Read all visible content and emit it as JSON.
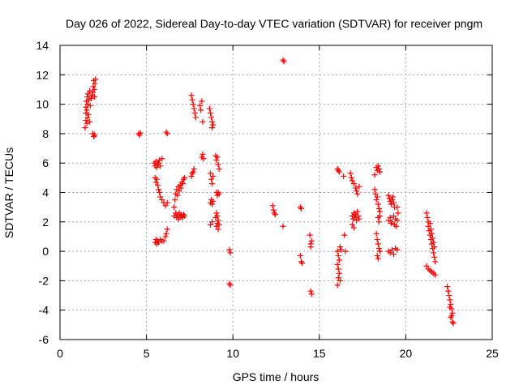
{
  "chart_data": {
    "type": "scatter",
    "title": "Day 026 of 2022, Sidereal Day-to-day VTEC variation (SDTVAR) for receiver pngm",
    "xlabel": "GPS time / hours",
    "ylabel": "SDTVAR / TECUs",
    "xlim": [
      0,
      25
    ],
    "ylim": [
      -6,
      14
    ],
    "xticks": [
      0,
      5,
      10,
      15,
      20,
      25
    ],
    "yticks": [
      -6,
      -4,
      -2,
      0,
      2,
      4,
      6,
      8,
      10,
      12,
      14
    ],
    "grid": true,
    "marker": "+",
    "series": [
      {
        "name": "SDTVAR",
        "color": "#ff0000",
        "points": [
          [
            1.45,
            8.4
          ],
          [
            1.5,
            8.9
          ],
          [
            1.5,
            9.4
          ],
          [
            1.5,
            9.8
          ],
          [
            1.52,
            10.2
          ],
          [
            1.55,
            8.7
          ],
          [
            1.55,
            9.6
          ],
          [
            1.58,
            10.5
          ],
          [
            1.6,
            9.1
          ],
          [
            1.6,
            10.0
          ],
          [
            1.62,
            10.7
          ],
          [
            1.65,
            9.3
          ],
          [
            1.68,
            10.3
          ],
          [
            1.7,
            8.8
          ],
          [
            1.72,
            10.9
          ],
          [
            1.75,
            9.9
          ],
          [
            1.8,
            10.4
          ],
          [
            1.85,
            10.6
          ],
          [
            1.9,
            10.8
          ],
          [
            1.92,
            11.2
          ],
          [
            1.95,
            11.6
          ],
          [
            1.98,
            11.0
          ],
          [
            2.0,
            10.5
          ],
          [
            2.02,
            11.4
          ],
          [
            2.05,
            11.7
          ],
          [
            1.9,
            8.0
          ],
          [
            1.95,
            7.8
          ],
          [
            2.0,
            7.9
          ],
          [
            4.55,
            8.0
          ],
          [
            4.6,
            7.9
          ],
          [
            4.65,
            8.05
          ],
          [
            6.15,
            8.1
          ],
          [
            6.2,
            8.0
          ],
          [
            5.45,
            6.0
          ],
          [
            5.5,
            5.8
          ],
          [
            5.55,
            6.1
          ],
          [
            5.6,
            5.7
          ],
          [
            5.65,
            5.9
          ],
          [
            5.7,
            6.0
          ],
          [
            5.75,
            6.2
          ],
          [
            5.8,
            5.8
          ],
          [
            5.9,
            6.3
          ],
          [
            5.5,
            5.0
          ],
          [
            5.55,
            4.7
          ],
          [
            5.6,
            4.9
          ],
          [
            5.65,
            4.5
          ],
          [
            5.7,
            4.2
          ],
          [
            5.75,
            4.0
          ],
          [
            5.8,
            3.7
          ],
          [
            5.9,
            3.5
          ],
          [
            6.0,
            3.3
          ],
          [
            6.1,
            3.1
          ],
          [
            6.2,
            3.3
          ],
          [
            5.5,
            0.6
          ],
          [
            5.55,
            0.8
          ],
          [
            5.6,
            0.5
          ],
          [
            5.65,
            0.7
          ],
          [
            5.7,
            0.6
          ],
          [
            5.8,
            0.8
          ],
          [
            5.9,
            0.7
          ],
          [
            6.0,
            0.7
          ],
          [
            6.1,
            1.0
          ],
          [
            6.15,
            1.2
          ],
          [
            6.2,
            1.5
          ],
          [
            6.6,
            2.4
          ],
          [
            6.7,
            2.6
          ],
          [
            6.75,
            2.3
          ],
          [
            6.8,
            2.5
          ],
          [
            6.85,
            2.2
          ],
          [
            6.9,
            2.6
          ],
          [
            6.95,
            2.3
          ],
          [
            7.0,
            2.5
          ],
          [
            7.05,
            2.4
          ],
          [
            7.1,
            2.3
          ],
          [
            7.15,
            2.5
          ],
          [
            7.2,
            2.4
          ],
          [
            6.6,
            3.0
          ],
          [
            6.65,
            3.5
          ],
          [
            6.7,
            3.9
          ],
          [
            6.75,
            4.2
          ],
          [
            6.8,
            3.8
          ],
          [
            6.85,
            4.4
          ],
          [
            6.9,
            4.1
          ],
          [
            6.95,
            4.5
          ],
          [
            7.0,
            4.3
          ],
          [
            7.05,
            4.7
          ],
          [
            7.1,
            4.6
          ],
          [
            7.15,
            4.9
          ],
          [
            7.2,
            5.0
          ],
          [
            7.6,
            5.1
          ],
          [
            7.65,
            5.3
          ],
          [
            7.7,
            5.4
          ],
          [
            7.75,
            5.6
          ],
          [
            7.6,
            10.6
          ],
          [
            7.65,
            10.3
          ],
          [
            7.7,
            10.0
          ],
          [
            7.75,
            9.7
          ],
          [
            7.8,
            9.4
          ],
          [
            7.85,
            9.1
          ],
          [
            8.1,
            9.9
          ],
          [
            8.15,
            9.6
          ],
          [
            8.2,
            10.2
          ],
          [
            8.25,
            8.8
          ],
          [
            8.2,
            6.4
          ],
          [
            8.25,
            6.6
          ],
          [
            8.3,
            6.3
          ],
          [
            8.65,
            9.7
          ],
          [
            8.7,
            9.4
          ],
          [
            8.75,
            9.1
          ],
          [
            8.8,
            8.8
          ],
          [
            8.8,
            8.4
          ],
          [
            8.85,
            8.6
          ],
          [
            8.7,
            5.3
          ],
          [
            8.75,
            4.9
          ],
          [
            8.8,
            4.6
          ],
          [
            8.85,
            5.1
          ],
          [
            8.7,
            3.3
          ],
          [
            8.75,
            3.5
          ],
          [
            8.8,
            3.2
          ],
          [
            8.85,
            3.4
          ],
          [
            8.7,
            1.8
          ],
          [
            8.8,
            2.0
          ],
          [
            9.0,
            6.5
          ],
          [
            9.05,
            6.2
          ],
          [
            9.1,
            6.4
          ],
          [
            9.15,
            5.9
          ],
          [
            9.2,
            5.6
          ],
          [
            9.05,
            4.0
          ],
          [
            9.1,
            3.8
          ],
          [
            9.15,
            4.0
          ],
          [
            9.2,
            3.9
          ],
          [
            9.0,
            2.3
          ],
          [
            9.05,
            2.6
          ],
          [
            9.1,
            2.4
          ],
          [
            9.15,
            2.1
          ],
          [
            9.05,
            1.7
          ],
          [
            9.1,
            1.9
          ],
          [
            9.15,
            1.5
          ],
          [
            9.2,
            1.8
          ],
          [
            9.8,
            0.1
          ],
          [
            9.85,
            -0.1
          ],
          [
            9.8,
            -2.2
          ],
          [
            9.85,
            -2.3
          ],
          [
            12.3,
            3.1
          ],
          [
            12.35,
            2.8
          ],
          [
            12.4,
            2.6
          ],
          [
            12.45,
            2.5
          ],
          [
            12.9,
            1.7
          ],
          [
            12.9,
            13.0
          ],
          [
            12.95,
            12.9
          ],
          [
            13.9,
            3.0
          ],
          [
            13.95,
            2.9
          ],
          [
            13.9,
            -0.3
          ],
          [
            13.95,
            -0.7
          ],
          [
            14.0,
            -0.8
          ],
          [
            14.45,
            1.1
          ],
          [
            14.5,
            0.5
          ],
          [
            14.55,
            0.7
          ],
          [
            14.5,
            0.3
          ],
          [
            14.5,
            -2.7
          ],
          [
            14.55,
            -2.9
          ],
          [
            16.05,
            5.6
          ],
          [
            16.1,
            5.5
          ],
          [
            16.15,
            5.4
          ],
          [
            16.05,
            0.0
          ],
          [
            16.1,
            -0.3
          ],
          [
            16.15,
            -0.6
          ],
          [
            16.05,
            -0.9
          ],
          [
            16.1,
            -1.2
          ],
          [
            16.15,
            -1.5
          ],
          [
            16.1,
            -1.8
          ],
          [
            16.2,
            -2.0
          ],
          [
            16.05,
            -2.3
          ],
          [
            16.2,
            0.3
          ],
          [
            16.25,
            0.1
          ],
          [
            16.5,
            0.0
          ],
          [
            16.45,
            1.1
          ],
          [
            16.4,
            5.1
          ],
          [
            16.8,
            5.3
          ],
          [
            16.85,
            5.0
          ],
          [
            16.9,
            4.8
          ],
          [
            17.0,
            4.6
          ],
          [
            17.1,
            4.3
          ],
          [
            17.15,
            4.1
          ],
          [
            17.2,
            3.9
          ],
          [
            17.3,
            4.4
          ],
          [
            16.9,
            2.4
          ],
          [
            16.95,
            2.2
          ],
          [
            17.0,
            2.6
          ],
          [
            17.05,
            2.3
          ],
          [
            17.1,
            2.5
          ],
          [
            17.15,
            2.1
          ],
          [
            17.2,
            2.7
          ],
          [
            17.25,
            2.4
          ],
          [
            17.3,
            2.2
          ],
          [
            16.9,
            1.8
          ],
          [
            17.0,
            1.6
          ],
          [
            18.3,
            5.7
          ],
          [
            18.35,
            5.5
          ],
          [
            18.4,
            5.8
          ],
          [
            18.45,
            5.6
          ],
          [
            18.5,
            5.4
          ],
          [
            18.2,
            5.2
          ],
          [
            18.2,
            4.2
          ],
          [
            18.25,
            3.9
          ],
          [
            18.3,
            3.5
          ],
          [
            18.35,
            3.7
          ],
          [
            18.4,
            3.2
          ],
          [
            18.45,
            2.9
          ],
          [
            18.5,
            2.7
          ],
          [
            18.4,
            2.3
          ],
          [
            18.45,
            2.0
          ],
          [
            18.5,
            2.4
          ],
          [
            18.3,
            1.2
          ],
          [
            18.35,
            0.8
          ],
          [
            18.4,
            0.5
          ],
          [
            18.45,
            0.2
          ],
          [
            18.5,
            0.0
          ],
          [
            18.35,
            -0.3
          ],
          [
            18.4,
            -0.5
          ],
          [
            19.0,
            3.8
          ],
          [
            19.05,
            3.6
          ],
          [
            19.1,
            3.4
          ],
          [
            19.15,
            3.2
          ],
          [
            19.2,
            3.5
          ],
          [
            19.25,
            3.7
          ],
          [
            19.3,
            3.3
          ],
          [
            19.35,
            3.0
          ],
          [
            19.0,
            2.1
          ],
          [
            19.1,
            2.3
          ],
          [
            19.15,
            1.9
          ],
          [
            19.2,
            2.0
          ],
          [
            19.3,
            2.4
          ],
          [
            19.35,
            1.8
          ],
          [
            19.4,
            2.2
          ],
          [
            19.45,
            1.7
          ],
          [
            19.5,
            2.1
          ],
          [
            19.55,
            2.6
          ],
          [
            19.5,
            3.0
          ],
          [
            19.0,
            0.0
          ],
          [
            19.1,
            -0.1
          ],
          [
            19.2,
            0.1
          ],
          [
            19.3,
            -0.2
          ],
          [
            19.4,
            0.2
          ],
          [
            19.5,
            0.1
          ],
          [
            21.2,
            2.6
          ],
          [
            21.25,
            2.3
          ],
          [
            21.3,
            2.0
          ],
          [
            21.3,
            1.7
          ],
          [
            21.35,
            1.4
          ],
          [
            21.4,
            1.1
          ],
          [
            21.45,
            0.8
          ],
          [
            21.5,
            0.5
          ],
          [
            21.55,
            0.2
          ],
          [
            21.6,
            -0.1
          ],
          [
            21.65,
            -0.4
          ],
          [
            21.7,
            -0.7
          ],
          [
            21.4,
            1.9
          ],
          [
            21.45,
            1.5
          ],
          [
            21.5,
            1.2
          ],
          [
            21.55,
            0.9
          ],
          [
            21.6,
            0.6
          ],
          [
            21.65,
            0.3
          ],
          [
            21.2,
            -1.0
          ],
          [
            21.3,
            -1.2
          ],
          [
            21.4,
            -1.3
          ],
          [
            21.5,
            -1.4
          ],
          [
            21.6,
            -1.5
          ],
          [
            21.7,
            -1.6
          ],
          [
            22.4,
            -2.4
          ],
          [
            22.45,
            -2.7
          ],
          [
            22.5,
            -3.0
          ],
          [
            22.55,
            -3.3
          ],
          [
            22.6,
            -3.6
          ],
          [
            22.65,
            -3.9
          ],
          [
            22.7,
            -4.2
          ],
          [
            22.6,
            -4.5
          ],
          [
            22.7,
            -4.8
          ],
          [
            22.75,
            -4.9
          ],
          [
            22.65,
            -4.4
          ],
          [
            22.55,
            -3.8
          ]
        ]
      }
    ]
  }
}
